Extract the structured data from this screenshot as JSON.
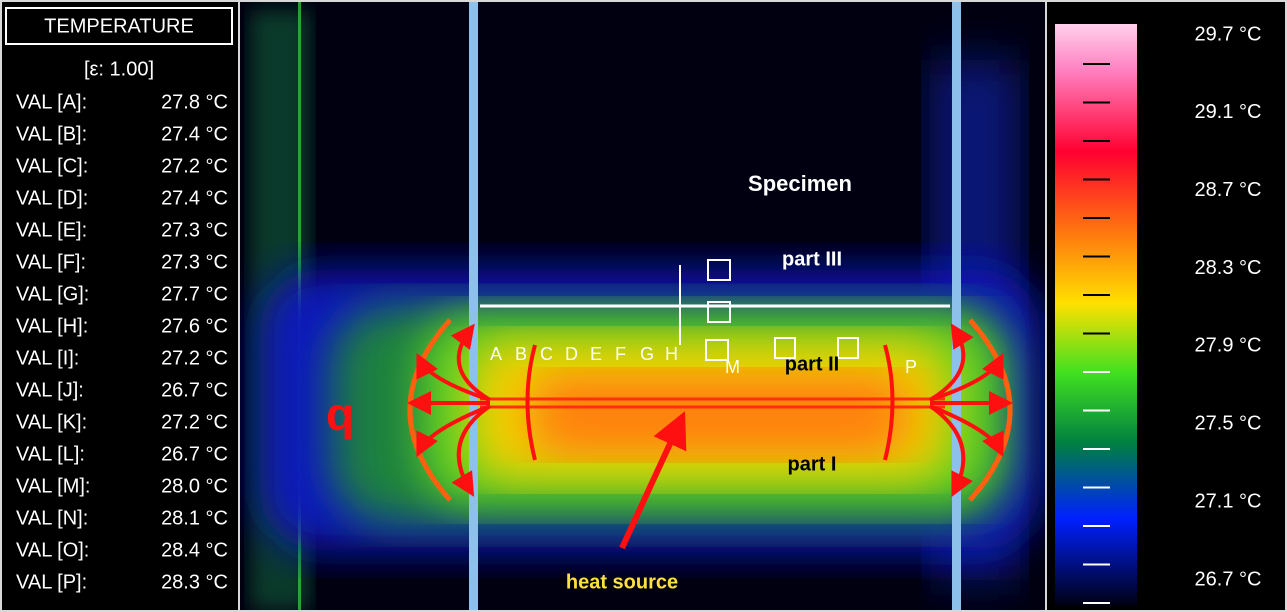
{
  "panel": {
    "title": "TEMPERATURE",
    "emissivity": "[ε: 1.00]",
    "measurements": [
      {
        "label": "VAL [A]:",
        "value": "27.8 °C"
      },
      {
        "label": "VAL [B]:",
        "value": "27.4 °C"
      },
      {
        "label": "VAL [C]:",
        "value": "27.2 °C"
      },
      {
        "label": "VAL [D]:",
        "value": "27.4 °C"
      },
      {
        "label": "VAL [E]:",
        "value": "27.3 °C"
      },
      {
        "label": "VAL [F]:",
        "value": "27.3 °C"
      },
      {
        "label": "VAL [G]:",
        "value": "27.7 °C"
      },
      {
        "label": "VAL [H]:",
        "value": "27.6 °C"
      },
      {
        "label": "VAL [I]:",
        "value": "27.2 °C"
      },
      {
        "label": "VAL [J]:",
        "value": "26.7 °C"
      },
      {
        "label": "VAL [K]:",
        "value": "27.2 °C"
      },
      {
        "label": "VAL [L]:",
        "value": "26.7 °C"
      },
      {
        "label": "VAL [M]:",
        "value": "28.0 °C"
      },
      {
        "label": "VAL [N]:",
        "value": "28.1 °C"
      },
      {
        "label": "VAL [O]:",
        "value": "28.4 °C"
      },
      {
        "label": "VAL [P]:",
        "value": "28.3 °C"
      }
    ]
  },
  "image": {
    "annotations": {
      "specimen": "Specimen",
      "part3": "part III",
      "part2": "part II",
      "part1": "part I",
      "flux": "q",
      "source": "heat source"
    },
    "markers": [
      "A",
      "B",
      "C",
      "D",
      "E",
      "F",
      "G",
      "H",
      "M",
      "P"
    ]
  },
  "scale": {
    "labels": [
      "29.7 °C",
      "29.1 °C",
      "28.7 °C",
      "28.3 °C",
      "27.9 °C",
      "27.5 °C",
      "27.1 °C",
      "26.7 °C"
    ]
  }
}
